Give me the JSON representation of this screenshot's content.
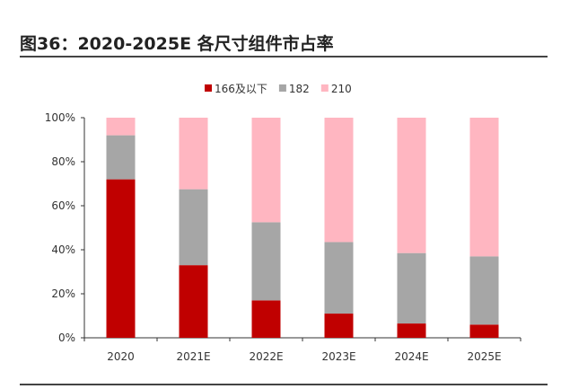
{
  "title": "图36：2020-2025E 各尺寸组件市占率",
  "chart_data": {
    "type": "bar",
    "stacked": true,
    "categories": [
      "2020",
      "2021E",
      "2022E",
      "2023E",
      "2024E",
      "2025E"
    ],
    "series": [
      {
        "name": "166及以下",
        "color": "#C00000",
        "values": [
          72,
          33,
          17,
          11,
          6.5,
          6
        ]
      },
      {
        "name": "182",
        "color": "#A6A6A6",
        "values": [
          20,
          34.5,
          35.5,
          32.5,
          32,
          31
        ]
      },
      {
        "name": "210",
        "color": "#FFB6C1",
        "values": [
          8,
          32.5,
          47.5,
          56.5,
          61.5,
          63
        ]
      }
    ],
    "ylim": [
      0,
      100
    ],
    "yticks": [
      "0%",
      "20%",
      "40%",
      "60%",
      "80%",
      "100%"
    ],
    "legend": "top",
    "grid": false
  }
}
